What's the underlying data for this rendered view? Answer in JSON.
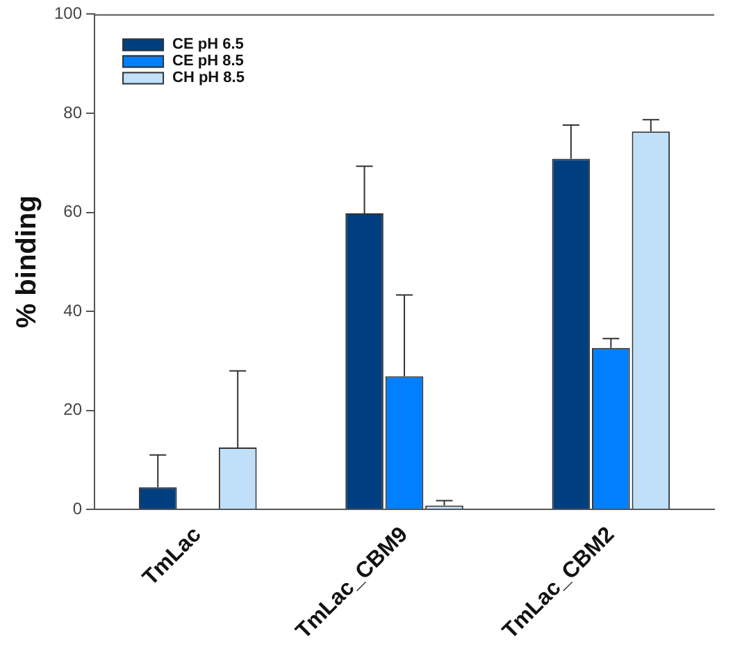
{
  "chart_data": {
    "type": "bar",
    "ylabel": "% binding",
    "categories": [
      "TmLac",
      "TmLac_CBM9",
      "TmLac_CBM2"
    ],
    "series": [
      {
        "name": "CE pH 6.5",
        "color": "#003f7f",
        "values": [
          4.5,
          59.8,
          70.8
        ],
        "errors": [
          [
            4.5,
            11
          ],
          [
            59.8,
            69.3
          ],
          [
            70.8,
            77.6
          ]
        ]
      },
      {
        "name": "CE pH 8.5",
        "color": "#0080ff",
        "values": [
          null,
          26.9,
          32.6
        ],
        "errors": [
          null,
          [
            26.9,
            43.3
          ],
          [
            32.6,
            34.5
          ]
        ]
      },
      {
        "name": "CH pH 8.5",
        "color": "#c0e0fa",
        "values": [
          12.5,
          0.8,
          76.3
        ],
        "errors": [
          [
            12.5,
            28
          ],
          [
            0.8,
            1.8
          ],
          [
            76.3,
            78.7
          ]
        ]
      }
    ],
    "ylim": [
      0,
      100
    ],
    "yticks": [
      0,
      20,
      40,
      60,
      80,
      100
    ],
    "grid": false,
    "legend": "top left"
  }
}
